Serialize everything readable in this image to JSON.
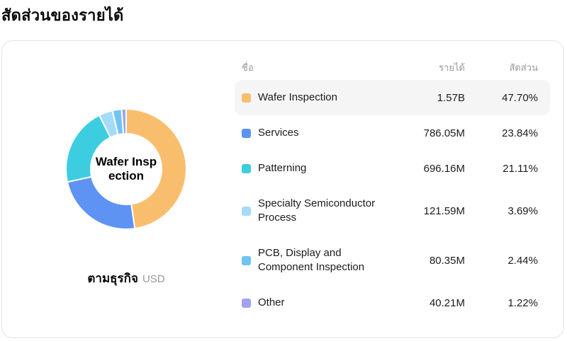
{
  "page": {
    "title": "สัดส่วนของรายได้"
  },
  "card": {
    "donut": {
      "center_label_line1": "Wafer Insp",
      "center_label_line2": "ection",
      "footer_label": "ตามธุรกิจ",
      "footer_unit": "USD"
    },
    "table": {
      "headers": {
        "name": "ชื่อ",
        "revenue": "รายได้",
        "share": "สัดส่วน"
      },
      "rows": [
        {
          "name": "Wafer Inspection",
          "revenue": "1.57B",
          "share": "47.70%",
          "color": "#F9BE6D",
          "highlighted": true
        },
        {
          "name": "Services",
          "revenue": "786.05M",
          "share": "23.84%",
          "color": "#5E93F4",
          "highlighted": false
        },
        {
          "name": "Patterning",
          "revenue": "696.16M",
          "share": "21.11%",
          "color": "#3DCDE0",
          "highlighted": false
        },
        {
          "name": "Specialty Semiconductor Process",
          "revenue": "121.59M",
          "share": "3.69%",
          "color": "#A5DBF8",
          "highlighted": false
        },
        {
          "name": "PCB, Display and Component Inspection",
          "revenue": "80.35M",
          "share": "2.44%",
          "color": "#6FC4F4",
          "highlighted": false
        },
        {
          "name": "Other",
          "revenue": "40.21M",
          "share": "1.22%",
          "color": "#A1A1F2",
          "highlighted": false
        }
      ]
    }
  },
  "chart_data": {
    "type": "pie",
    "subtype": "donut",
    "title": "สัดส่วนของรายได้",
    "group_label": "ตามธุรกิจ",
    "unit": "USD",
    "categories": [
      "Wafer Inspection",
      "Services",
      "Patterning",
      "Specialty Semiconductor Process",
      "PCB, Display and Component Inspection",
      "Other"
    ],
    "values_label": [
      "1.57B",
      "786.05M",
      "696.16M",
      "121.59M",
      "80.35M",
      "40.21M"
    ],
    "percentages": [
      47.7,
      23.84,
      21.11,
      3.69,
      2.44,
      1.22
    ],
    "colors": [
      "#F9BE6D",
      "#5E93F4",
      "#3DCDE0",
      "#A5DBF8",
      "#6FC4F4",
      "#A1A1F2"
    ],
    "center_label": "Wafer Inspection",
    "legend_position": "right",
    "highlighted_slice": "Wafer Inspection"
  }
}
